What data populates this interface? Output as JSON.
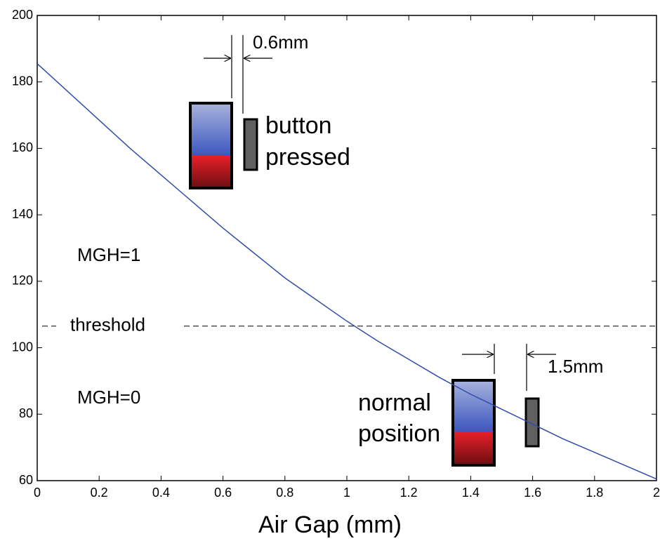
{
  "chart_data": {
    "type": "line",
    "xlabel": "Air Gap (mm)",
    "x": [
      0,
      0.1,
      0.2,
      0.3,
      0.4,
      0.5,
      0.6,
      0.7,
      0.8,
      0.9,
      1.0,
      1.1,
      1.2,
      1.3,
      1.4,
      1.5,
      1.6,
      1.7,
      1.8,
      1.9,
      2.0
    ],
    "series": [
      {
        "color": "#2f4ea8",
        "values": [
          185.5,
          177,
          168.5,
          160,
          152,
          144,
          136,
          128.5,
          121,
          114.5,
          108,
          102,
          96.5,
          91,
          86,
          81.5,
          77,
          72.5,
          68.5,
          64.5,
          60.5
        ]
      }
    ],
    "xlim": [
      0,
      2
    ],
    "ylim": [
      60,
      200
    ],
    "xticks": [
      0,
      0.2,
      0.4,
      0.6,
      0.8,
      1,
      1.2,
      1.4,
      1.6,
      1.8,
      2
    ],
    "yticks": [
      60,
      80,
      100,
      120,
      140,
      160,
      180,
      200
    ],
    "reference_line": {
      "y": 106.5,
      "label": "threshold"
    },
    "annotations": [
      "MGH=1",
      "MGH=0",
      "0.6mm",
      "button",
      "pressed",
      "1.5mm",
      "normal",
      "position"
    ]
  }
}
